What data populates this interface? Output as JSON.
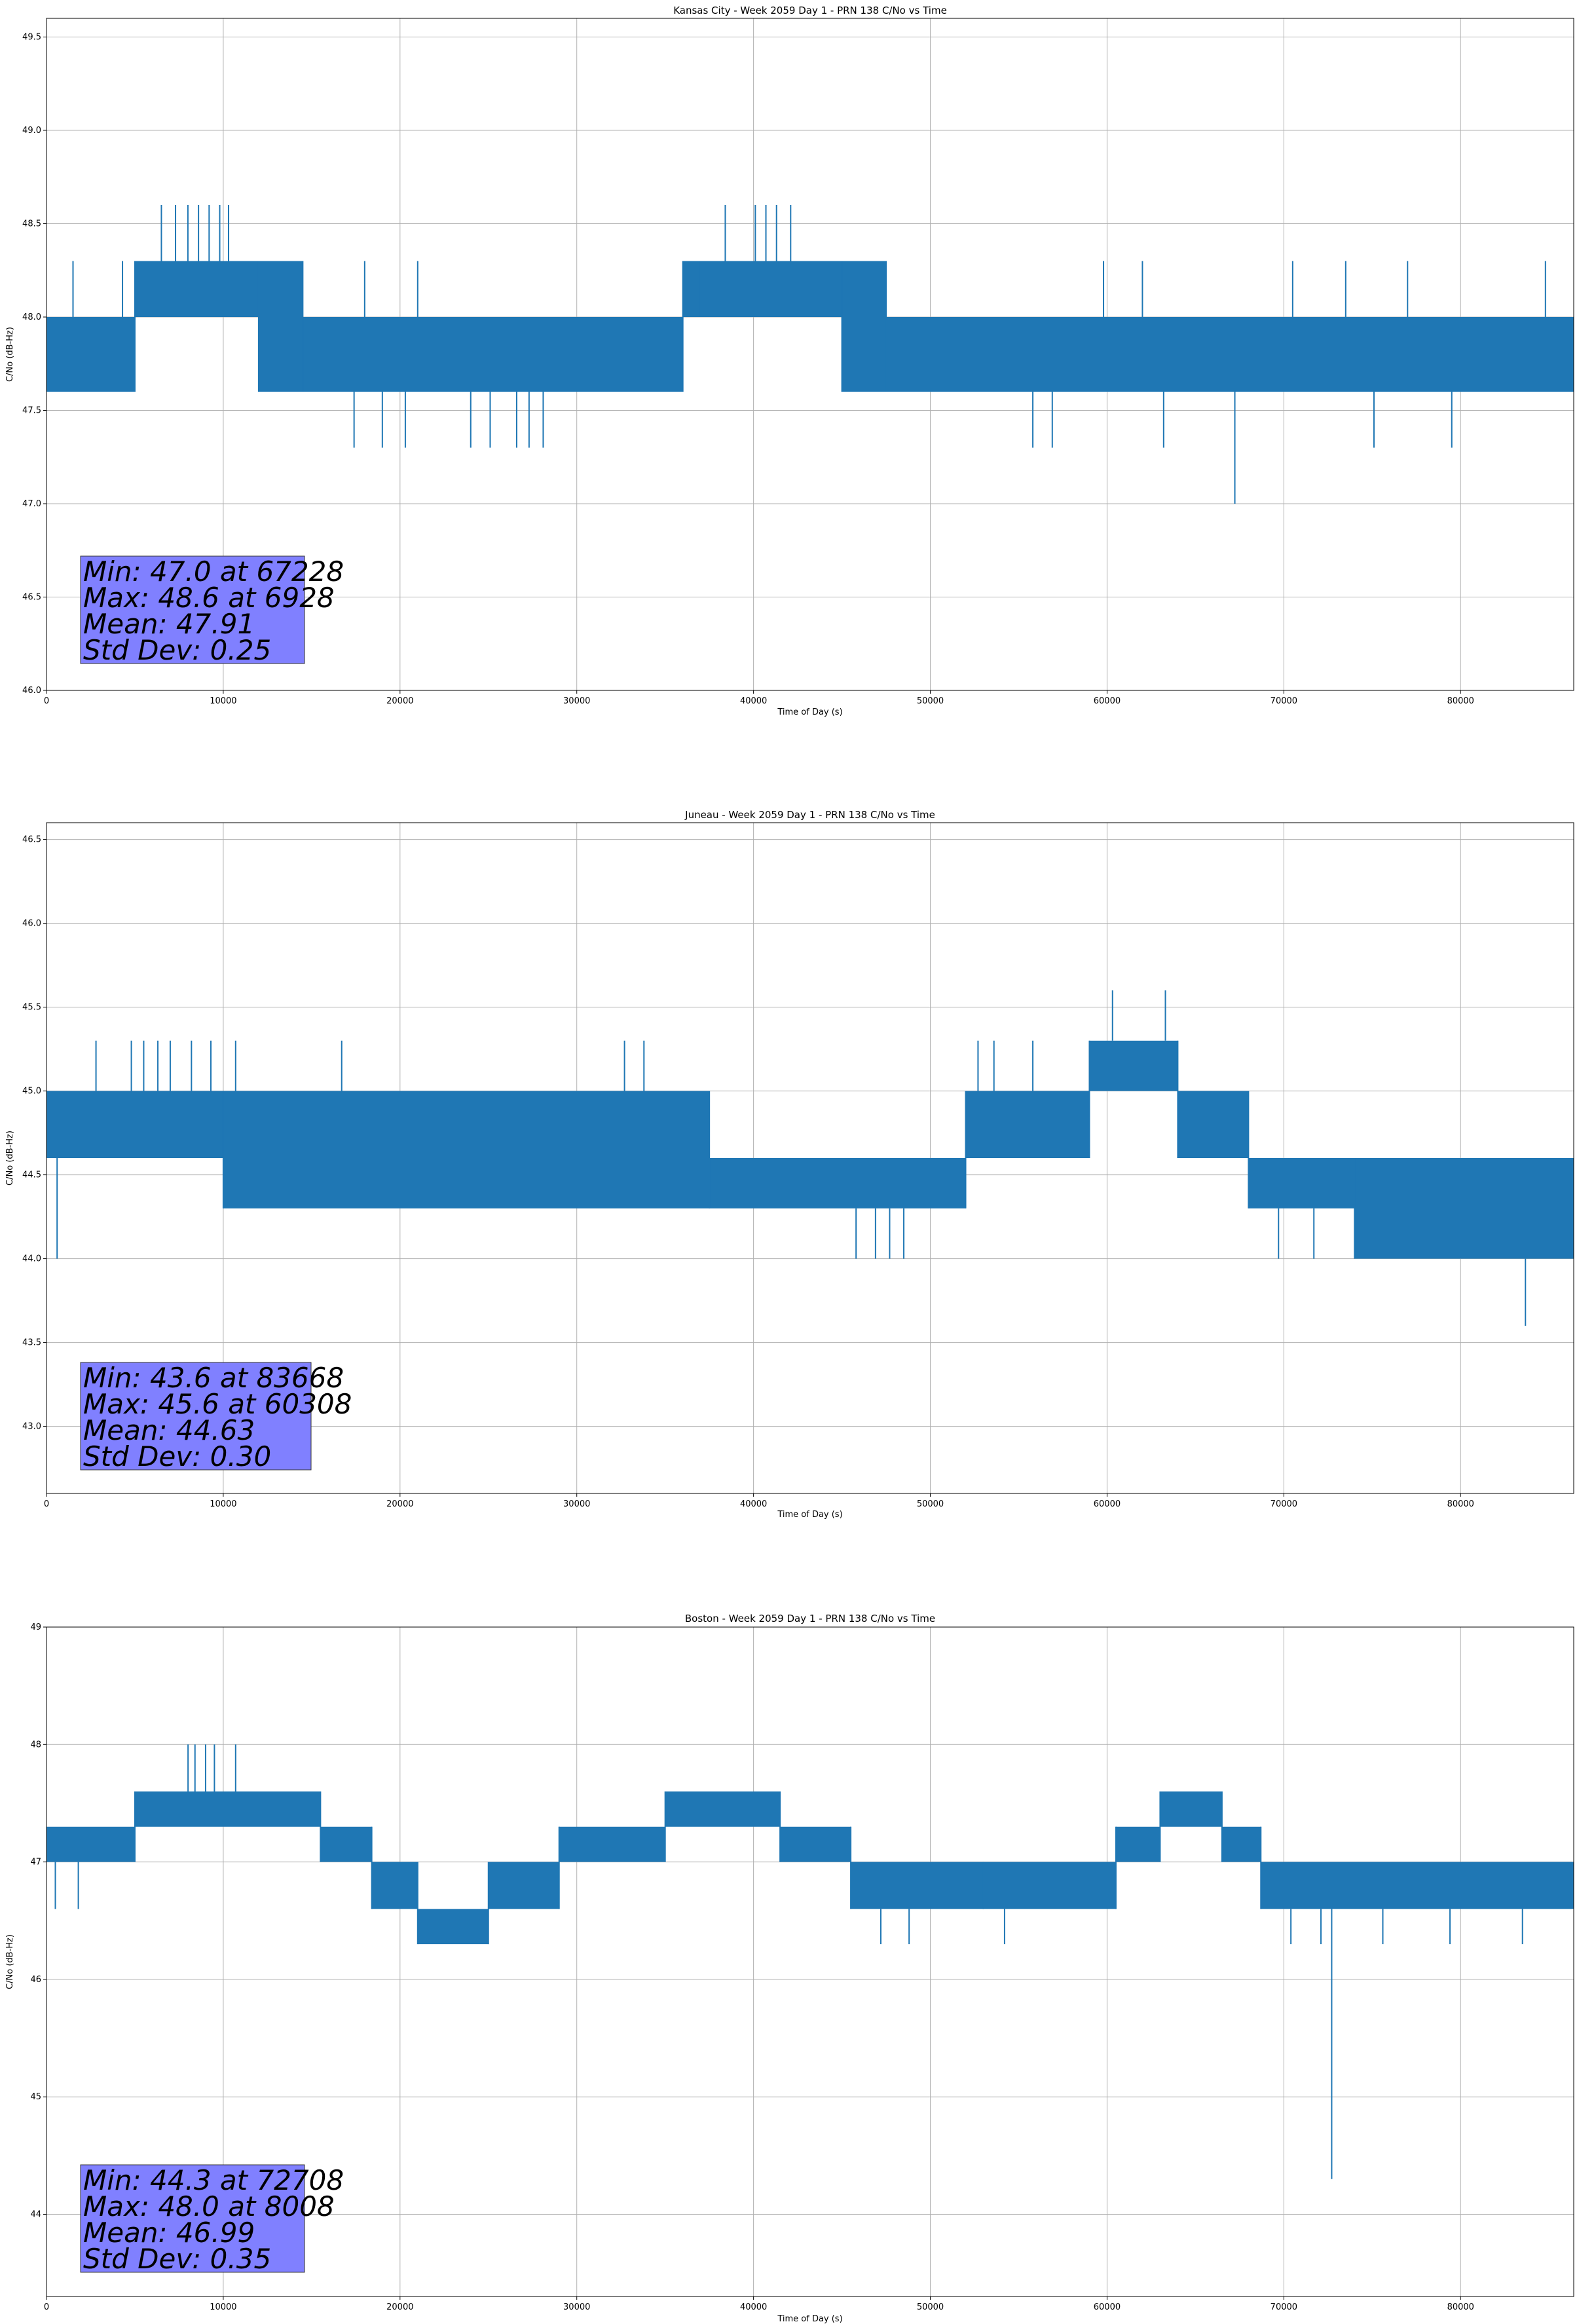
{
  "figure": {
    "background": "#ffffff",
    "series_color": "#1f77b4",
    "grid_color": "#b0b0b0",
    "stats_box_color": "#8080ff"
  },
  "chart_data": [
    {
      "type": "line",
      "title": "Kansas City - Week 2059 Day 1 - PRN 138 C/No vs Time",
      "xlabel": "Time of Day (s)",
      "ylabel": "C/No (dB-Hz)",
      "xlim": [
        0,
        86400
      ],
      "ylim": [
        46.0,
        49.6
      ],
      "xticks": [
        0,
        10000,
        20000,
        30000,
        40000,
        50000,
        60000,
        70000,
        80000
      ],
      "yticks": [
        46.0,
        46.5,
        47.0,
        47.5,
        48.0,
        48.5,
        49.0,
        49.5
      ],
      "ytick_labels": [
        "46.0",
        "46.5",
        "47.0",
        "47.5",
        "48.0",
        "48.5",
        "49.0",
        "49.5"
      ],
      "grid": true,
      "series": [
        {
          "band_segments": [
            [
              0,
              5000,
              47.6,
              48.0
            ],
            [
              5000,
              12000,
              48.0,
              48.3
            ],
            [
              12000,
              14500,
              47.6,
              48.3
            ],
            [
              14500,
              36000,
              47.6,
              48.0
            ],
            [
              36000,
              45000,
              48.0,
              48.3
            ],
            [
              45000,
              47500,
              47.6,
              48.3
            ],
            [
              47500,
              86400,
              47.6,
              48.0
            ]
          ]
        }
      ],
      "spikes": [
        [
          6500,
          48.6
        ],
        [
          7300,
          48.6
        ],
        [
          8000,
          48.6
        ],
        [
          8600,
          48.6
        ],
        [
          9200,
          48.6
        ],
        [
          9800,
          48.6
        ],
        [
          10300,
          48.6
        ],
        [
          1500,
          48.3
        ],
        [
          4300,
          48.3
        ],
        [
          18000,
          48.3
        ],
        [
          21000,
          48.3
        ],
        [
          37000,
          48.3
        ],
        [
          59800,
          48.3
        ],
        [
          62000,
          48.3
        ],
        [
          70500,
          48.3
        ],
        [
          73500,
          48.3
        ],
        [
          77000,
          48.3
        ],
        [
          84800,
          48.3
        ],
        [
          38400,
          48.6
        ],
        [
          40100,
          48.6
        ],
        [
          40700,
          48.6
        ],
        [
          41300,
          48.6
        ],
        [
          42100,
          48.6
        ],
        [
          17400,
          47.3
        ],
        [
          19000,
          47.3
        ],
        [
          20300,
          47.3
        ],
        [
          24000,
          47.3
        ],
        [
          25100,
          47.3
        ],
        [
          26600,
          47.3
        ],
        [
          27300,
          47.3
        ],
        [
          28100,
          47.3
        ],
        [
          55800,
          47.3
        ],
        [
          56900,
          47.3
        ],
        [
          63200,
          47.3
        ],
        [
          75100,
          47.3
        ],
        [
          79500,
          47.3
        ],
        [
          67228,
          47.0
        ]
      ],
      "stats": {
        "min": "Min: 47.0 at 67228",
        "max": "Max: 48.6 at 6928",
        "mean": "Mean: 47.91",
        "std": "Std Dev: 0.25"
      }
    },
    {
      "type": "line",
      "title": "Juneau - Week 2059 Day 1 - PRN 138 C/No vs Time",
      "xlabel": "Time of Day (s)",
      "ylabel": "C/No (dB-Hz)",
      "xlim": [
        0,
        86400
      ],
      "ylim": [
        42.6,
        46.6
      ],
      "xticks": [
        0,
        10000,
        20000,
        30000,
        40000,
        50000,
        60000,
        70000,
        80000
      ],
      "yticks": [
        43.0,
        43.5,
        44.0,
        44.5,
        45.0,
        45.5,
        46.0,
        46.5
      ],
      "ytick_labels": [
        "43.0",
        "43.5",
        "44.0",
        "44.5",
        "45.0",
        "45.5",
        "46.0",
        "46.5"
      ],
      "grid": true,
      "series": [
        {
          "band_segments": [
            [
              0,
              10000,
              44.6,
              45.0
            ],
            [
              10000,
              37500,
              44.3,
              45.0
            ],
            [
              37500,
              52000,
              44.3,
              44.6
            ],
            [
              52000,
              59000,
              44.6,
              45.0
            ],
            [
              59000,
              64000,
              45.0,
              45.3
            ],
            [
              64000,
              68000,
              44.6,
              45.0
            ],
            [
              68000,
              74000,
              44.3,
              44.6
            ],
            [
              74000,
              86400,
              44.0,
              44.6
            ]
          ]
        }
      ],
      "spikes": [
        [
          2800,
          45.3
        ],
        [
          4800,
          45.3
        ],
        [
          5500,
          45.3
        ],
        [
          6300,
          45.3
        ],
        [
          7000,
          45.3
        ],
        [
          8200,
          45.3
        ],
        [
          9300,
          45.3
        ],
        [
          10700,
          45.3
        ],
        [
          16700,
          45.3
        ],
        [
          32700,
          45.3
        ],
        [
          33800,
          45.3
        ],
        [
          52700,
          45.3
        ],
        [
          53600,
          45.3
        ],
        [
          55800,
          45.3
        ],
        [
          60308,
          45.6
        ],
        [
          63300,
          45.6
        ],
        [
          600,
          44.0
        ],
        [
          45800,
          44.0
        ],
        [
          46900,
          44.0
        ],
        [
          47700,
          44.0
        ],
        [
          48500,
          44.0
        ],
        [
          69700,
          44.0
        ],
        [
          71700,
          44.0
        ],
        [
          77600,
          44.0
        ],
        [
          80100,
          44.0
        ],
        [
          83668,
          43.6
        ]
      ],
      "stats": {
        "min": "Min: 43.6 at 83668",
        "max": "Max: 45.6 at 60308",
        "mean": "Mean: 44.63",
        "std": "Std Dev: 0.30"
      }
    },
    {
      "type": "line",
      "title": "Boston - Week 2059 Day 1 - PRN 138 C/No vs Time",
      "xlabel": "Time of Day (s)",
      "ylabel": "C/No (dB-Hz)",
      "xlim": [
        0,
        86400
      ],
      "ylim": [
        43.3,
        49.0
      ],
      "xticks": [
        0,
        10000,
        20000,
        30000,
        40000,
        50000,
        60000,
        70000,
        80000
      ],
      "yticks": [
        44,
        45,
        46,
        47,
        48,
        49
      ],
      "ytick_labels": [
        "44",
        "45",
        "46",
        "47",
        "48",
        "49"
      ],
      "grid": true,
      "series": [
        {
          "band_segments": [
            [
              0,
              5000,
              47.0,
              47.3
            ],
            [
              5000,
              15500,
              47.3,
              47.6
            ],
            [
              15500,
              18400,
              47.0,
              47.3
            ],
            [
              18400,
              21000,
              46.6,
              47.0
            ],
            [
              21000,
              25000,
              46.3,
              46.6
            ],
            [
              25000,
              29000,
              46.6,
              47.0
            ],
            [
              29000,
              35000,
              47.0,
              47.3
            ],
            [
              35000,
              41500,
              47.3,
              47.6
            ],
            [
              41500,
              45500,
              47.0,
              47.3
            ],
            [
              45500,
              53000,
              46.6,
              47.0
            ],
            [
              53000,
              60500,
              46.6,
              47.0
            ],
            [
              60500,
              63000,
              47.0,
              47.3
            ],
            [
              63000,
              66500,
              47.3,
              47.6
            ],
            [
              66500,
              68700,
              47.0,
              47.3
            ],
            [
              68700,
              86400,
              46.6,
              47.0
            ]
          ]
        }
      ],
      "spikes": [
        [
          8008,
          48.0
        ],
        [
          8400,
          48.0
        ],
        [
          9000,
          48.0
        ],
        [
          9500,
          48.0
        ],
        [
          10700,
          48.0
        ],
        [
          1800,
          46.6
        ],
        [
          500,
          46.6
        ],
        [
          23900,
          46.3
        ],
        [
          47200,
          46.3
        ],
        [
          48800,
          46.3
        ],
        [
          54200,
          46.3
        ],
        [
          70400,
          46.3
        ],
        [
          72100,
          46.3
        ],
        [
          75600,
          46.3
        ],
        [
          79400,
          46.3
        ],
        [
          83500,
          46.3
        ],
        [
          72708,
          44.3
        ]
      ],
      "stats": {
        "min": "Min: 44.3 at 72708",
        "max": "Max: 48.0 at 8008",
        "mean": "Mean: 46.99",
        "std": "Std Dev: 0.35"
      }
    }
  ]
}
